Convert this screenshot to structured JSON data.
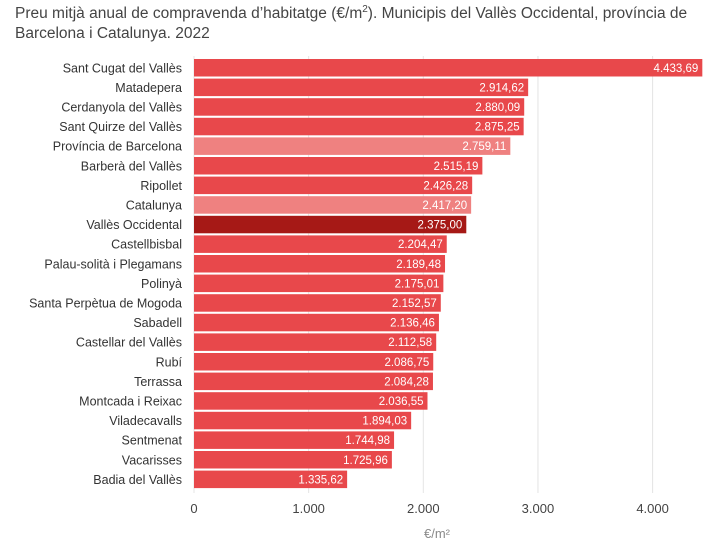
{
  "chart_data": {
    "type": "bar",
    "orientation": "horizontal",
    "title_main": "Preu mitjà anual de compravenda d’habitatge (€/m",
    "title_sup": "2",
    "title_rest": "). Municipis del Vallès Occidental, província de Barcelona i Catalunya. 2022",
    "xlabel": "€/m²",
    "xlim": [
      0,
      4433.69
    ],
    "xticks": [
      0,
      1000,
      2000,
      3000,
      4000
    ],
    "xtick_labels": [
      "0",
      "1.000",
      "2.000",
      "3.000",
      "4.000"
    ],
    "grid": true,
    "colors": {
      "municipality": "#e8484b",
      "aggregate": "#ef8180",
      "highlight": "#a61916"
    },
    "categories": [
      "Sant Cugat del Vallès",
      "Matadepera",
      "Cerdanyola del Vallès",
      "Sant Quirze del Vallès",
      "Província de Barcelona",
      "Barberà del Vallès",
      "Ripollet",
      "Catalunya",
      "Vallès Occidental",
      "Castellbisbal",
      "Palau-solità i Plegamans",
      "Polinyà",
      "Santa Perpètua de Mogoda",
      "Sabadell",
      "Castellar del Vallès",
      "Rubí",
      "Terrassa",
      "Montcada i Reixac",
      "Viladecavalls",
      "Sentmenat",
      "Vacarisses",
      "Badia del Vallès"
    ],
    "values": [
      4433.69,
      2914.62,
      2880.09,
      2875.25,
      2759.11,
      2515.19,
      2426.28,
      2417.2,
      2375.0,
      2204.47,
      2189.48,
      2175.01,
      2152.57,
      2136.46,
      2112.58,
      2086.75,
      2084.28,
      2036.55,
      1894.03,
      1744.98,
      1725.96,
      1335.62
    ],
    "value_labels": [
      "4.433,69",
      "2.914,62",
      "2.880,09",
      "2.875,25",
      "2.759,11",
      "2.515,19",
      "2.426,28",
      "2.417,20",
      "2.375,00",
      "2.204,47",
      "2.189,48",
      "2.175,01",
      "2.152,57",
      "2.136,46",
      "2.112,58",
      "2.086,75",
      "2.084,28",
      "2.036,55",
      "1.894,03",
      "1.744,98",
      "1.725,96",
      "1.335,62"
    ],
    "bar_kind": [
      "municipality",
      "municipality",
      "municipality",
      "municipality",
      "aggregate",
      "municipality",
      "municipality",
      "aggregate",
      "highlight",
      "municipality",
      "municipality",
      "municipality",
      "municipality",
      "municipality",
      "municipality",
      "municipality",
      "municipality",
      "municipality",
      "municipality",
      "municipality",
      "municipality",
      "municipality"
    ]
  }
}
